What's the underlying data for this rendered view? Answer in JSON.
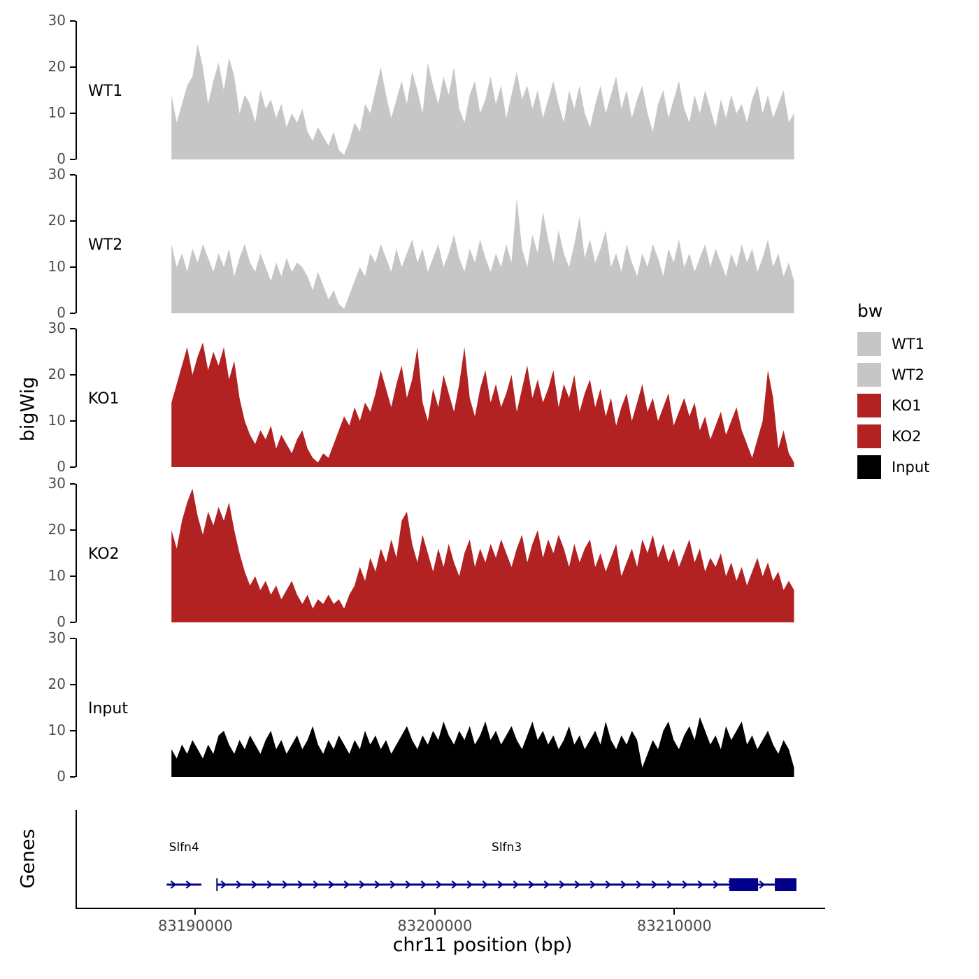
{
  "figure": {
    "y_axis_label": "bigWig",
    "genes_axis_label": "Genes",
    "x_axis_label": "chr11 position (bp)",
    "x_ticks": [
      {
        "bp": 83190000,
        "label": "83190000"
      },
      {
        "bp": 83200000,
        "label": "83200000"
      },
      {
        "bp": 83210000,
        "label": "83210000"
      }
    ]
  },
  "legend": {
    "title": "bw",
    "entries": [
      {
        "label": "WT1",
        "color": "#c6c6c6"
      },
      {
        "label": "WT2",
        "color": "#c6c6c6"
      },
      {
        "label": "KO1",
        "color": "#b22222"
      },
      {
        "label": "KO2",
        "color": "#b22222"
      },
      {
        "label": "Input",
        "color": "#000000"
      }
    ]
  },
  "chart_data": {
    "type": "area",
    "title": "",
    "xlabel": "chr11 position (bp)",
    "ylabel": "bigWig",
    "ylim": [
      0,
      30
    ],
    "y_tick_values": [
      0,
      10,
      20,
      30
    ],
    "x_tick_values": [
      83190000,
      83200000,
      83210000
    ],
    "x_domain_bp": [
      83185050,
      83216300
    ],
    "signal_range_bp": [
      83189000,
      83215000
    ],
    "gene_color": "#00008b",
    "tracks": [
      {
        "name": "WT1",
        "color": "#c6c6c6",
        "values": [
          14,
          8,
          12,
          16,
          18,
          25,
          20,
          12,
          17,
          21,
          15,
          22,
          18,
          10,
          14,
          12,
          8,
          15,
          11,
          13,
          9,
          12,
          7,
          10,
          8,
          11,
          6,
          4,
          7,
          5,
          3,
          6,
          2,
          1,
          4,
          8,
          6,
          12,
          10,
          15,
          20,
          14,
          9,
          13,
          17,
          12,
          19,
          15,
          10,
          21,
          16,
          12,
          18,
          14,
          20,
          11,
          8,
          14,
          17,
          10,
          13,
          18,
          12,
          16,
          9,
          14,
          19,
          13,
          16,
          11,
          15,
          9,
          13,
          17,
          12,
          8,
          15,
          11,
          16,
          10,
          7,
          12,
          16,
          10,
          14,
          18,
          11,
          15,
          9,
          13,
          16,
          10,
          6,
          12,
          15,
          9,
          13,
          17,
          11,
          8,
          14,
          10,
          15,
          11,
          7,
          13,
          9,
          14,
          10,
          12,
          8,
          13,
          16,
          10,
          14,
          9,
          12,
          15,
          8,
          10
        ]
      },
      {
        "name": "WT2",
        "color": "#c6c6c6",
        "values": [
          15,
          10,
          13,
          9,
          14,
          11,
          15,
          12,
          9,
          13,
          10,
          14,
          8,
          12,
          15,
          11,
          9,
          13,
          10,
          7,
          11,
          8,
          12,
          9,
          11,
          10,
          8,
          5,
          9,
          6,
          3,
          5,
          2,
          1,
          4,
          7,
          10,
          8,
          13,
          11,
          15,
          12,
          9,
          14,
          10,
          13,
          16,
          11,
          14,
          9,
          12,
          15,
          10,
          13,
          17,
          12,
          9,
          14,
          11,
          16,
          12,
          9,
          13,
          10,
          15,
          11,
          25,
          14,
          10,
          17,
          13,
          22,
          16,
          11,
          18,
          13,
          10,
          15,
          21,
          12,
          16,
          11,
          14,
          18,
          10,
          13,
          9,
          15,
          11,
          8,
          13,
          10,
          15,
          12,
          8,
          14,
          11,
          16,
          10,
          13,
          9,
          12,
          15,
          10,
          14,
          11,
          8,
          13,
          10,
          15,
          11,
          14,
          9,
          12,
          16,
          10,
          13,
          8,
          11,
          7
        ]
      },
      {
        "name": "KO1",
        "color": "#b22222",
        "values": [
          14,
          18,
          22,
          26,
          20,
          24,
          27,
          21,
          25,
          22,
          26,
          19,
          23,
          15,
          10,
          7,
          5,
          8,
          6,
          9,
          4,
          7,
          5,
          3,
          6,
          8,
          4,
          2,
          1,
          3,
          2,
          5,
          8,
          11,
          9,
          13,
          10,
          14,
          12,
          16,
          21,
          17,
          13,
          18,
          22,
          15,
          19,
          26,
          14,
          10,
          17,
          13,
          20,
          16,
          12,
          18,
          26,
          15,
          11,
          17,
          21,
          14,
          18,
          13,
          16,
          20,
          12,
          17,
          22,
          15,
          19,
          14,
          17,
          21,
          13,
          18,
          15,
          20,
          12,
          16,
          19,
          13,
          17,
          11,
          15,
          9,
          13,
          16,
          10,
          14,
          18,
          12,
          15,
          10,
          13,
          16,
          9,
          12,
          15,
          11,
          14,
          8,
          11,
          6,
          9,
          12,
          7,
          10,
          13,
          8,
          5,
          2,
          6,
          10,
          21,
          15,
          4,
          8,
          3,
          1
        ]
      },
      {
        "name": "KO2",
        "color": "#b22222",
        "values": [
          20,
          16,
          22,
          26,
          29,
          23,
          19,
          24,
          21,
          25,
          22,
          26,
          20,
          15,
          11,
          8,
          10,
          7,
          9,
          6,
          8,
          5,
          7,
          9,
          6,
          4,
          6,
          3,
          5,
          4,
          6,
          4,
          5,
          3,
          6,
          8,
          12,
          9,
          14,
          11,
          16,
          13,
          18,
          14,
          22,
          24,
          17,
          13,
          19,
          15,
          11,
          16,
          12,
          17,
          13,
          10,
          15,
          18,
          12,
          16,
          13,
          17,
          14,
          18,
          15,
          12,
          16,
          19,
          13,
          17,
          20,
          14,
          18,
          15,
          19,
          16,
          12,
          17,
          13,
          16,
          18,
          12,
          15,
          11,
          14,
          17,
          10,
          13,
          16,
          12,
          18,
          15,
          19,
          14,
          17,
          13,
          16,
          12,
          15,
          18,
          13,
          16,
          11,
          14,
          12,
          15,
          10,
          13,
          9,
          12,
          8,
          11,
          14,
          10,
          13,
          9,
          11,
          7,
          9,
          7
        ]
      },
      {
        "name": "Input",
        "color": "#000000",
        "values": [
          6,
          4,
          7,
          5,
          8,
          6,
          4,
          7,
          5,
          9,
          10,
          7,
          5,
          8,
          6,
          9,
          7,
          5,
          8,
          10,
          6,
          8,
          5,
          7,
          9,
          6,
          8,
          11,
          7,
          5,
          8,
          6,
          9,
          7,
          5,
          8,
          6,
          10,
          7,
          9,
          6,
          8,
          5,
          7,
          9,
          11,
          8,
          6,
          9,
          7,
          10,
          8,
          12,
          9,
          7,
          10,
          8,
          11,
          7,
          9,
          12,
          8,
          10,
          7,
          9,
          11,
          8,
          6,
          9,
          12,
          8,
          10,
          7,
          9,
          6,
          8,
          11,
          7,
          9,
          6,
          8,
          10,
          7,
          12,
          8,
          6,
          9,
          7,
          10,
          8,
          2,
          5,
          8,
          6,
          10,
          12,
          8,
          6,
          9,
          11,
          8,
          13,
          10,
          7,
          9,
          6,
          11,
          8,
          10,
          12,
          7,
          9,
          6,
          8,
          10,
          7,
          5,
          8,
          6,
          2
        ]
      }
    ],
    "genes": [
      {
        "name": "Slfn4",
        "start": 83188800,
        "end": 83190250,
        "strand": "+",
        "exons": []
      },
      {
        "name": "Slfn3",
        "start": 83190900,
        "end": 83215100,
        "strand": "+",
        "exons": [
          [
            83212300,
            83213500
          ],
          [
            83214200,
            83215100
          ]
        ]
      }
    ]
  }
}
